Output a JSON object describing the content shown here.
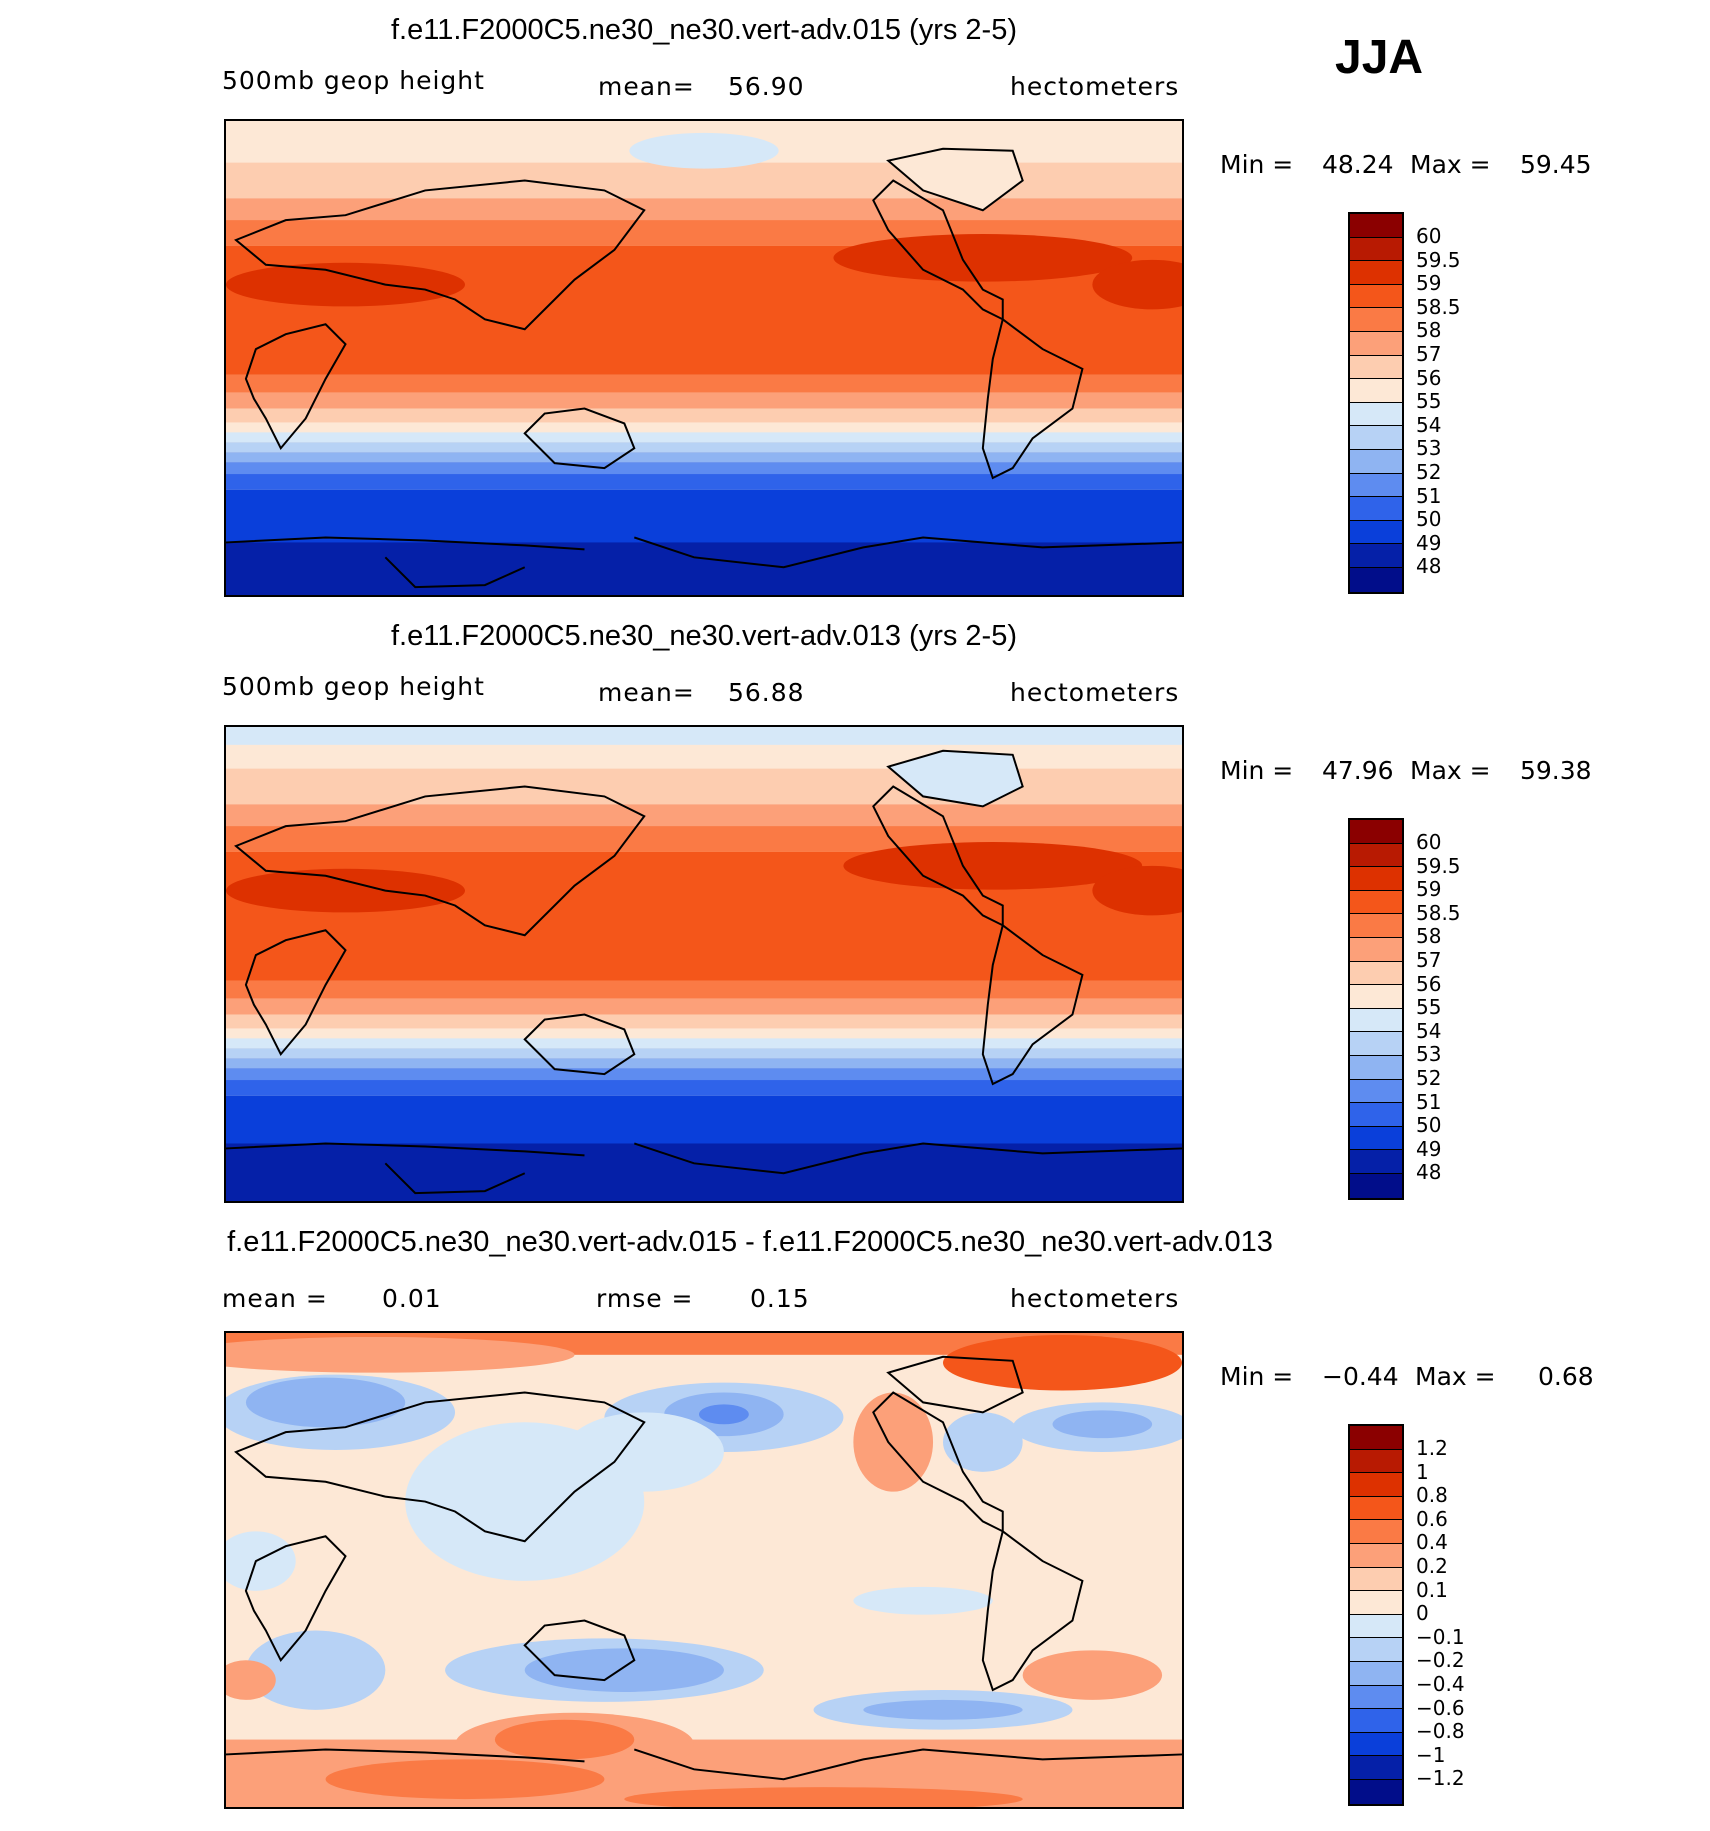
{
  "season": "JJA",
  "panels": [
    {
      "title": "f.e11.F2000C5.ne30_ne30.vert-adv.015 (yrs 2-5)",
      "variable": "500mb  geop  height",
      "stat_label": "mean=",
      "stat_value": "56.90",
      "units": "hectometers",
      "min_label": "Min =",
      "min_value": "48.24",
      "max_label": "Max =",
      "max_value": "59.45",
      "colorbar": {
        "labels": [
          "60",
          "59.5",
          "59",
          "58.5",
          "58",
          "57",
          "56",
          "55",
          "54",
          "53",
          "52",
          "51",
          "50",
          "49",
          "48"
        ],
        "colors": [
          "#8b0000",
          "#b81a02",
          "#dd3100",
          "#f4561a",
          "#fa7a45",
          "#fca079",
          "#fdcdb0",
          "#fde8d6",
          "#d6e8f8",
          "#b7d2f5",
          "#8fb4f2",
          "#5e8cf0",
          "#2f63ea",
          "#0a3fda",
          "#0520a8",
          "#010d8a"
        ]
      }
    },
    {
      "title": "f.e11.F2000C5.ne30_ne30.vert-adv.013 (yrs 2-5)",
      "variable": "500mb  geop  height",
      "stat_label": "mean=",
      "stat_value": "56.88",
      "units": "hectometers",
      "min_label": "Min =",
      "min_value": "47.96",
      "max_label": "Max =",
      "max_value": "59.38",
      "colorbar": {
        "labels": [
          "60",
          "59.5",
          "59",
          "58.5",
          "58",
          "57",
          "56",
          "55",
          "54",
          "53",
          "52",
          "51",
          "50",
          "49",
          "48"
        ],
        "colors": [
          "#8b0000",
          "#b81a02",
          "#dd3100",
          "#f4561a",
          "#fa7a45",
          "#fca079",
          "#fdcdb0",
          "#fde8d6",
          "#d6e8f8",
          "#b7d2f5",
          "#8fb4f2",
          "#5e8cf0",
          "#2f63ea",
          "#0a3fda",
          "#0520a8",
          "#010d8a"
        ]
      }
    },
    {
      "title": "f.e11.F2000C5.ne30_ne30.vert-adv.015 - f.e11.F2000C5.ne30_ne30.vert-adv.013",
      "stat_label": "mean =",
      "stat_value": "0.01",
      "stat2_label": "rmse =",
      "stat2_value": "0.15",
      "units": "hectometers",
      "min_label": "Min =",
      "min_value": "−0.44",
      "max_label": "Max =",
      "max_value": "0.68",
      "colorbar": {
        "labels": [
          "1.2",
          "1",
          "0.8",
          "0.6",
          "0.4",
          "0.2",
          "0.1",
          "0",
          "−0.1",
          "−0.2",
          "−0.4",
          "−0.6",
          "−0.8",
          "−1",
          "−1.2"
        ],
        "colors": [
          "#8b0000",
          "#b81a02",
          "#dd3100",
          "#f4561a",
          "#fa7a45",
          "#fca079",
          "#fdcdb0",
          "#fde8d6",
          "#d6e8f8",
          "#b7d2f5",
          "#8fb4f2",
          "#5e8cf0",
          "#2f63ea",
          "#0a3fda",
          "#0520a8",
          "#010d8a"
        ]
      }
    }
  ]
}
